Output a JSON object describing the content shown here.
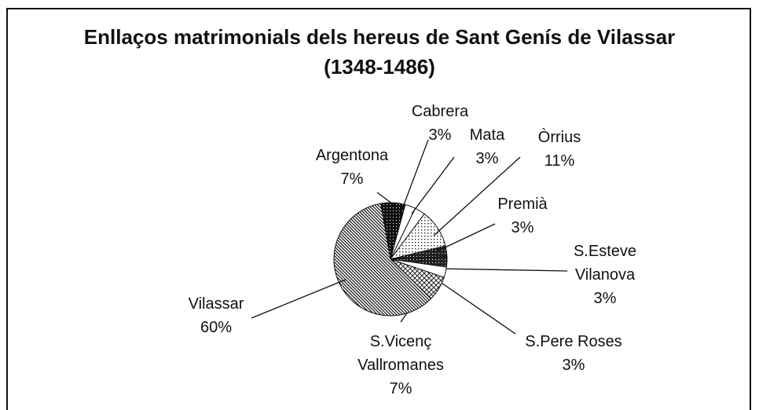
{
  "chart_data": {
    "type": "pie",
    "title": "Enllaços matrimonials dels hereus de Sant Genís de Vilassar (1348-1486)",
    "categories": [
      "Argentona",
      "Cabrera",
      "Mata",
      "Òrrius",
      "Premià",
      "S.Esteve Vilanova",
      "S.Pere Roses",
      "S.Vicenç Vallromanes",
      "Vilassar"
    ],
    "values": [
      7,
      3,
      3,
      11,
      3,
      3,
      3,
      7,
      60
    ],
    "value_labels": [
      "7%",
      "3%",
      "3%",
      "11%",
      "3%",
      "3%",
      "3%",
      "7%",
      "60%"
    ]
  }
}
